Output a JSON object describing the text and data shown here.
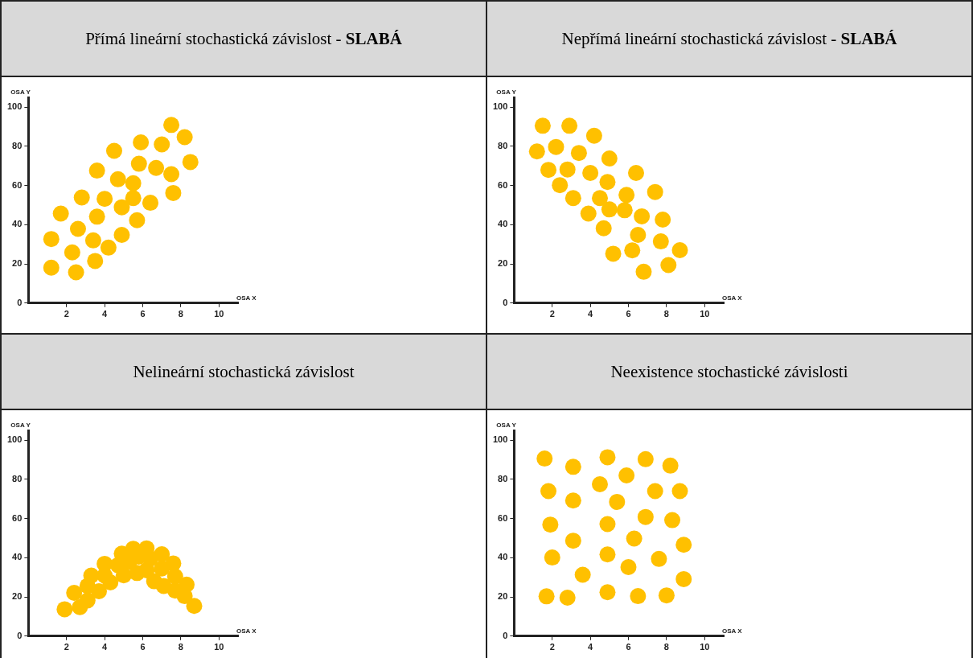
{
  "chart_data": [
    {
      "type": "scatter",
      "title": "Přímá lineární stochastická závislost - SLABÁ",
      "xlabel": "OSA X",
      "ylabel": "OSA Y",
      "xlim": [
        0,
        11
      ],
      "ylim": [
        0,
        105
      ],
      "xticks": [
        2,
        4,
        6,
        8,
        10
      ],
      "yticks": [
        0,
        20,
        40,
        60,
        80,
        100
      ],
      "grid": false,
      "legend": false,
      "marker": "circle",
      "series": [
        {
          "color": "#ffc000",
          "x": [
            1.2,
            1.2,
            1.7,
            2.3,
            2.5,
            2.6,
            2.8,
            3.4,
            3.5,
            3.6,
            3.6,
            4.0,
            4.2,
            4.5,
            4.7,
            4.9,
            4.9,
            5.5,
            5.5,
            5.7,
            5.8,
            5.9,
            6.4,
            6.7,
            7.0,
            7.5,
            7.5,
            7.6,
            8.2,
            8.5
          ],
          "values": [
            32.7,
            18.1,
            45.7,
            25.9,
            15.7,
            37.9,
            53.9,
            32,
            21.5,
            67.6,
            44.1,
            53.2,
            28.3,
            77.7,
            63.2,
            48.9,
            34.8,
            53.6,
            61.2,
            42.3,
            71.1,
            82,
            51.2,
            69,
            81,
            90.9,
            65.8,
            56.2,
            84.7,
            72
          ]
        }
      ]
    },
    {
      "type": "scatter",
      "title": "Nepřímá lineární stochastická závislost - SLABÁ",
      "xlabel": "OSA X",
      "ylabel": "OSA Y",
      "xlim": [
        0,
        11
      ],
      "ylim": [
        0,
        105
      ],
      "xticks": [
        2,
        4,
        6,
        8,
        10
      ],
      "yticks": [
        0,
        20,
        40,
        60,
        80,
        100
      ],
      "grid": false,
      "legend": false,
      "marker": "circle",
      "series": [
        {
          "color": "#ffc000",
          "x": [
            1.5,
            2.9,
            4.2,
            1.2,
            2.2,
            3.4,
            5.0,
            1.8,
            2.8,
            4.0,
            6.4,
            2.4,
            4.9,
            3.1,
            4.5,
            5.9,
            7.4,
            3.9,
            5.0,
            5.8,
            6.7,
            7.8,
            4.7,
            6.5,
            7.7,
            5.2,
            6.2,
            8.7,
            6.8,
            8.1
          ],
          "values": [
            90.5,
            90.5,
            85.4,
            77.4,
            79.7,
            76.6,
            73.8,
            68,
            68.2,
            66.4,
            66.4,
            60.2,
            61.8,
            53.6,
            53.6,
            55.2,
            56.7,
            45.7,
            47.8,
            47.4,
            44.3,
            42.6,
            38.2,
            34.8,
            31.5,
            25.2,
            26.9,
            27,
            16,
            19.4
          ]
        }
      ]
    },
    {
      "type": "scatter",
      "title": "Nelineární stochastická závislost",
      "xlabel": "OSA X",
      "ylabel": "OSA Y",
      "xlim": [
        0,
        11
      ],
      "ylim": [
        0,
        105
      ],
      "xticks": [
        2,
        4,
        6,
        8,
        10
      ],
      "yticks": [
        0,
        20,
        40,
        60,
        80,
        100
      ],
      "grid": false,
      "legend": false,
      "marker": "circle",
      "series": [
        {
          "color": "#ffc000",
          "x": [
            1.9,
            2.4,
            2.7,
            3.1,
            3.1,
            3.3,
            3.7,
            4.0,
            4.0,
            4.3,
            4.7,
            4.9,
            5.0,
            5.3,
            5.5,
            5.7,
            5.8,
            6.2,
            6.2,
            6.4,
            6.6,
            7.0,
            7.0,
            7.1,
            7.6,
            7.7,
            7.7,
            8.2,
            8.3,
            8.7
          ],
          "values": [
            13.7,
            22.1,
            14.8,
            18.2,
            25.6,
            30.9,
            22.9,
            30.9,
            36.9,
            27.4,
            36.2,
            42.1,
            31,
            38,
            44.6,
            32.2,
            40.6,
            44.8,
            33.6,
            39.6,
            28,
            41.8,
            34.5,
            25.6,
            37.1,
            30.5,
            23.2,
            20.4,
            26.3,
            15.4
          ]
        }
      ]
    },
    {
      "type": "scatter",
      "title": "Neexistence stochastické závislosti",
      "xlabel": "OSA X",
      "ylabel": "OSA Y",
      "xlim": [
        0,
        11
      ],
      "ylim": [
        0,
        105
      ],
      "xticks": [
        2,
        4,
        6,
        8,
        10
      ],
      "yticks": [
        0,
        20,
        40,
        60,
        80,
        100
      ],
      "grid": false,
      "legend": false,
      "marker": "circle",
      "series": [
        {
          "color": "#ffc000",
          "x": [
            1.6,
            3.1,
            4.9,
            6.9,
            8.2,
            4.5,
            5.9,
            1.8,
            3.1,
            5.4,
            7.4,
            8.7,
            1.9,
            4.9,
            6.9,
            8.3,
            3.1,
            6.3,
            8.9,
            2.0,
            4.9,
            6.0,
            7.6,
            3.6,
            8.9,
            1.7,
            2.8,
            4.9,
            6.5,
            8.0
          ],
          "values": [
            90.6,
            86.4,
            91.3,
            90.3,
            87,
            77.5,
            82,
            74,
            69.2,
            68.5,
            74,
            74,
            56.9,
            57.2,
            60.8,
            59.2,
            48.7,
            49.8,
            46.6,
            40.1,
            41.7,
            35.2,
            39.4,
            31.3,
            29.1,
            20.3,
            19.6,
            22.4,
            20.4,
            20.8
          ]
        }
      ]
    }
  ]
}
